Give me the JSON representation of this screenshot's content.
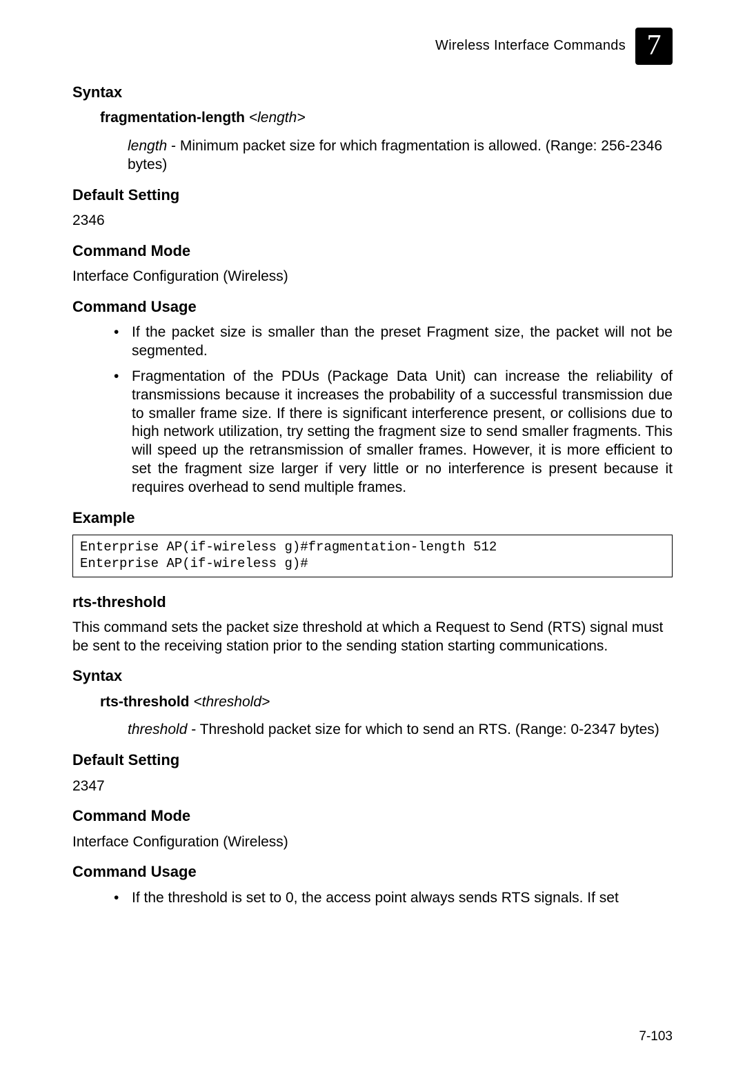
{
  "header": {
    "text": "Wireless Interface Commands",
    "chapter": "7"
  },
  "cmd1": {
    "h_syntax": "Syntax",
    "syntax_cmd": "fragmentation-length",
    "syntax_arg": "<length>",
    "param_name": "length",
    "param_desc": " - Minimum packet size for which fragmentation is allowed. (Range: 256-2346 bytes)",
    "h_default": "Default Setting",
    "default_val": "2346",
    "h_mode": "Command Mode",
    "mode_val": "Interface Configuration (Wireless)",
    "h_usage": "Command Usage",
    "usage": [
      "If the packet size is smaller than the preset Fragment size, the packet will not be segmented.",
      "Fragmentation of the PDUs (Package Data Unit) can increase the reliability of transmissions because it increases the probability of a successful transmission due to smaller frame size. If there is significant interference present, or collisions due to high network utilization, try setting the fragment size to send smaller fragments. This will speed up the retransmission of smaller frames. However, it is more efficient to set the fragment size larger if very little or no interference is present because it requires overhead to send multiple frames."
    ],
    "h_example": "Example",
    "example_code": "Enterprise AP(if-wireless g)#fragmentation-length 512\nEnterprise AP(if-wireless g)#"
  },
  "cmd2": {
    "title": "rts-threshold",
    "intro": "This command sets the packet size threshold at which a Request to Send (RTS) signal must be sent to the receiving station prior to the sending station starting communications.",
    "h_syntax": "Syntax",
    "syntax_cmd": "rts-threshold",
    "syntax_arg": "<threshold>",
    "param_name": "threshold",
    "param_desc": " - Threshold packet size for which to send an RTS. (Range: 0-2347 bytes)",
    "h_default": "Default Setting",
    "default_val": "2347",
    "h_mode": "Command Mode",
    "mode_val": "Interface Configuration (Wireless)",
    "h_usage": "Command Usage",
    "usage": [
      "If the threshold is set to 0, the access point always sends RTS signals. If set"
    ]
  },
  "page_number": "7-103"
}
